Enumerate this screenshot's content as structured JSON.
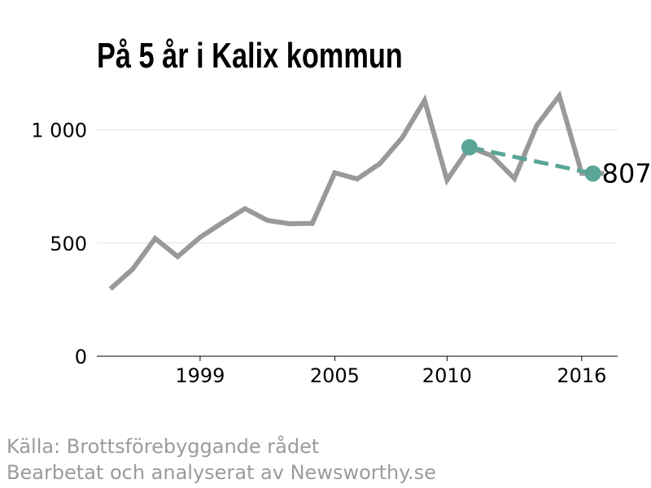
{
  "chart_data": {
    "type": "line",
    "title": "På 5 år i Kalix kommun",
    "xlabel": "",
    "ylabel": "",
    "xlim": [
      1994.4,
      2017.6
    ],
    "ylim": [
      0,
      1250
    ],
    "x_ticks": [
      1999,
      2005,
      2010,
      2016
    ],
    "y_ticks": [
      {
        "value": 0,
        "label": "0"
      },
      {
        "value": 500,
        "label": "500"
      },
      {
        "value": 1000,
        "label": "1 000"
      }
    ],
    "grid": true,
    "series": [
      {
        "color": "#999999",
        "x": [
          1995,
          1996,
          1997,
          1998,
          1999,
          2000,
          2001,
          2002,
          2003,
          2004,
          2005,
          2006,
          2007,
          2008,
          2009,
          2010,
          2011,
          2012,
          2013,
          2014,
          2015,
          2016,
          2017
        ],
        "values": [
          297,
          385,
          520,
          440,
          525,
          590,
          652,
          600,
          585,
          587,
          810,
          783,
          850,
          965,
          1130,
          778,
          923,
          885,
          785,
          1020,
          1150,
          807,
          807
        ]
      }
    ],
    "highlight": {
      "color": "#5aa597",
      "from": {
        "x": 2011,
        "y": 923
      },
      "to": {
        "x": 2016.5,
        "y": 807
      },
      "label": "807"
    }
  },
  "source": {
    "line1": "Källa: Brottsförebyggande rådet",
    "line2": "Bearbetat och analyserat av Newsworthy.se"
  }
}
